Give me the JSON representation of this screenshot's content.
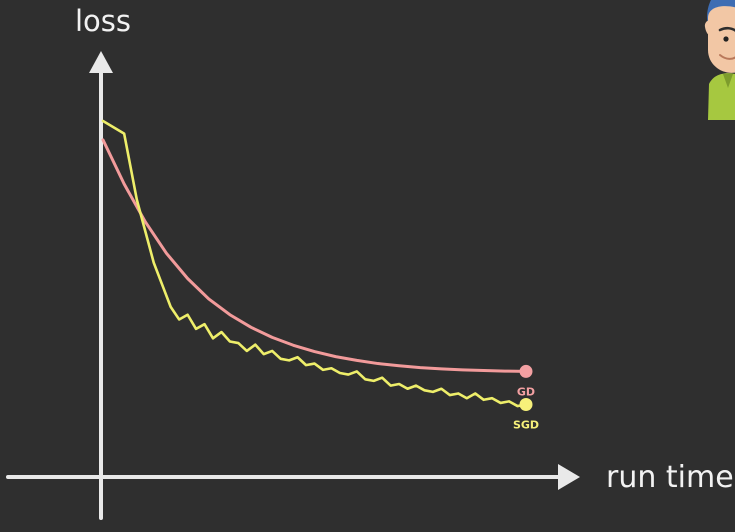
{
  "chart_data": {
    "type": "line",
    "title": "",
    "xlabel": "run time",
    "ylabel": "loss",
    "xlim": [
      0,
      100
    ],
    "ylim": [
      0,
      100
    ],
    "grid": false,
    "legend": "end-of-line labels",
    "series": [
      {
        "name": "GD",
        "color": "#f29b9b",
        "marker_color": "#f3a0a2",
        "x": [
          0,
          5,
          10,
          15,
          20,
          25,
          30,
          35,
          40,
          45,
          50,
          55,
          60,
          65,
          70,
          75,
          80,
          85,
          90,
          95,
          100
        ],
        "y": [
          94,
          80,
          68,
          58,
          50,
          43.5,
          38.5,
          34.5,
          31.3,
          28.8,
          26.8,
          25.2,
          24,
          23,
          22.3,
          21.7,
          21.3,
          21,
          20.8,
          20.6,
          20.5
        ]
      },
      {
        "name": "SGD",
        "color": "#eeee6a",
        "marker_color": "#f6f07a",
        "x": [
          0,
          5,
          8,
          10,
          12,
          14,
          16,
          18,
          20,
          22,
          24,
          26,
          28,
          30,
          32,
          34,
          36,
          38,
          40,
          42,
          44,
          46,
          48,
          50,
          52,
          54,
          56,
          58,
          60,
          62,
          64,
          66,
          68,
          70,
          72,
          74,
          76,
          78,
          80,
          82,
          84,
          86,
          88,
          90,
          92,
          94,
          96,
          98,
          100
        ],
        "y": [
          100,
          96,
          75,
          65,
          55,
          48,
          41,
          37,
          38.5,
          34,
          35.5,
          31,
          33,
          30,
          29.5,
          27,
          29,
          26,
          27,
          24.5,
          24,
          25,
          22.5,
          23,
          21,
          21.5,
          20,
          19.5,
          20.5,
          18,
          17.5,
          18.5,
          16,
          16.5,
          15,
          16,
          14.5,
          14,
          15,
          13,
          13.5,
          12,
          13.5,
          11.5,
          12,
          10.5,
          11,
          9.5,
          10
        ]
      }
    ]
  }
}
